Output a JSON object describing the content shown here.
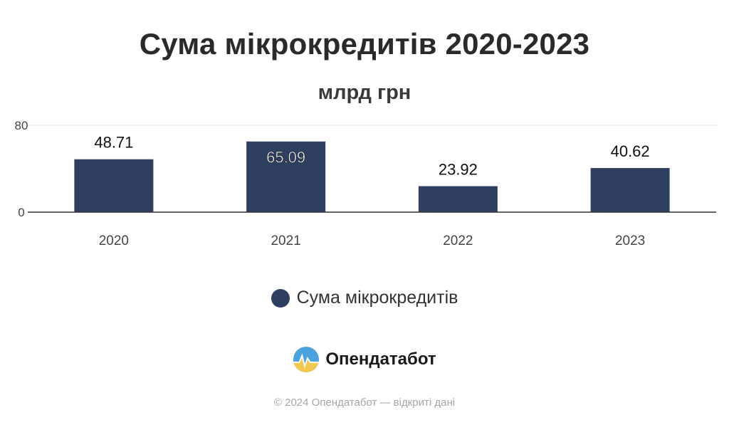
{
  "chart_data": {
    "type": "bar",
    "title": "Сума мікрокредитів 2020-2023",
    "subtitle": "млрд грн",
    "categories": [
      "2020",
      "2021",
      "2022",
      "2023"
    ],
    "series": [
      {
        "name": "Сума мікрокредитів",
        "values": [
          48.71,
          65.09,
          23.92,
          40.62
        ],
        "labels": [
          "48.71",
          "65.09",
          "23.92",
          "40.62"
        ],
        "color": "#2f3f61"
      }
    ],
    "ylim": [
      0,
      80
    ],
    "yticks": [
      "0",
      "80"
    ],
    "grid": true,
    "legend": "bottom"
  },
  "brand": {
    "name": "Опендатабот",
    "logo_icon": "opendatabot-logo-icon",
    "logo_colors": [
      "#4aa3df",
      "#f2c94c"
    ]
  },
  "footer": {
    "text": "© 2024 Опендатабот — відкриті дані"
  }
}
